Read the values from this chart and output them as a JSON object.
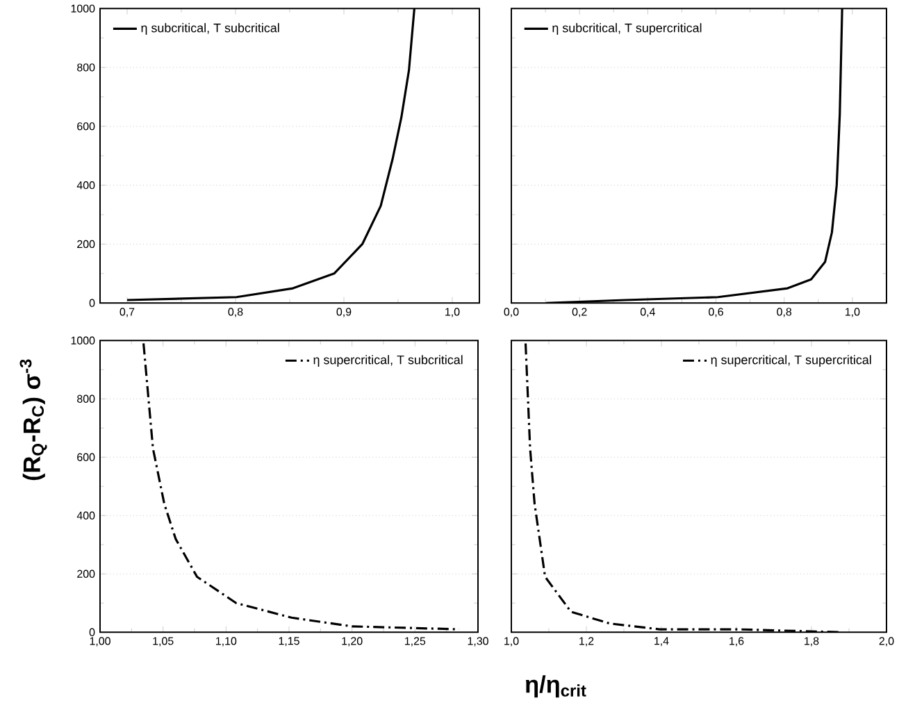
{
  "chart_data": [
    {
      "type": "line",
      "xlim": [
        0.675,
        1.025
      ],
      "ylim": [
        0,
        1000
      ],
      "xticks": [
        {
          "value": 0.7,
          "label": "0,7"
        },
        {
          "value": 0.8,
          "label": "0,8"
        },
        {
          "value": 0.9,
          "label": "0,9"
        },
        {
          "value": 1.0,
          "label": "1,0"
        }
      ],
      "yticks": [
        0,
        200,
        400,
        600,
        800,
        1000
      ],
      "grid": "y",
      "legend": "top left",
      "line_style": "solid",
      "series": [
        {
          "name": "η subcritical, T subcritical",
          "color": "#000000",
          "x": [
            0.7,
            0.801,
            0.853,
            0.891,
            0.917,
            0.934,
            0.945,
            0.953,
            0.96,
            0.965
          ],
          "values": [
            10,
            20,
            50,
            100,
            200,
            330,
            490,
            630,
            790,
            1000
          ]
        }
      ]
    },
    {
      "type": "line",
      "xlim": [
        0.0,
        1.1
      ],
      "ylim": [
        0,
        1000
      ],
      "xticks": [
        {
          "value": 0.0,
          "label": "0,0"
        },
        {
          "value": 0.2,
          "label": "0,2"
        },
        {
          "value": 0.4,
          "label": "0,4"
        },
        {
          "value": 0.6,
          "label": "0,6"
        },
        {
          "value": 0.8,
          "label": "0,8"
        },
        {
          "value": 1.0,
          "label": "1,0"
        }
      ],
      "yticks": [
        0,
        200,
        400,
        600,
        800,
        1000
      ],
      "tick_labels": "x",
      "grid": "y",
      "legend": "top left",
      "line_style": "solid",
      "series": [
        {
          "name": "η subcritical, T supercritical",
          "color": "#000000",
          "x": [
            0.102,
            0.334,
            0.606,
            0.81,
            0.879,
            0.92,
            0.94,
            0.954,
            0.963,
            0.97
          ],
          "values": [
            0,
            10,
            20,
            50,
            80,
            140,
            240,
            400,
            640,
            1000
          ]
        }
      ]
    },
    {
      "type": "line",
      "ylabel": "(R$_{Q}$-R$_{C}$) σ$^{-3}$",
      "xlim": [
        1.0,
        1.3
      ],
      "ylim": [
        0,
        1000
      ],
      "xticks": [
        {
          "value": 1.0,
          "label": "1,00"
        },
        {
          "value": 1.05,
          "label": "1,05"
        },
        {
          "value": 1.1,
          "label": "1,10"
        },
        {
          "value": 1.15,
          "label": "1,15"
        },
        {
          "value": 1.2,
          "label": "1,20"
        },
        {
          "value": 1.25,
          "label": "1,25"
        },
        {
          "value": 1.3,
          "label": "1,30"
        }
      ],
      "yticks": [
        0,
        200,
        400,
        600,
        800,
        1000
      ],
      "grid": "y",
      "legend": "top right",
      "line_style": "dashdot",
      "series": [
        {
          "name": "η supercritical, T subcritical",
          "color": "#000000",
          "x": [
            1.0345,
            1.042,
            1.051,
            1.06,
            1.077,
            1.108,
            1.152,
            1.2,
            1.285
          ],
          "values": [
            990,
            630,
            440,
            320,
            190,
            100,
            50,
            20,
            10
          ]
        }
      ]
    },
    {
      "type": "line",
      "xlabel": "η/η$_{crit}$",
      "xlim": [
        1.0,
        2.0
      ],
      "ylim": [
        0,
        1000
      ],
      "xticks": [
        {
          "value": 1.0,
          "label": "1,0"
        },
        {
          "value": 1.2,
          "label": "1,2"
        },
        {
          "value": 1.4,
          "label": "1,4"
        },
        {
          "value": 1.6,
          "label": "1,6"
        },
        {
          "value": 1.8,
          "label": "1,8"
        },
        {
          "value": 2.0,
          "label": "2,0"
        }
      ],
      "yticks": [
        0,
        200,
        400,
        600,
        800,
        1000
      ],
      "tick_labels": "x",
      "grid": "y",
      "legend": "top right",
      "line_style": "dashdot",
      "series": [
        {
          "name": "η supercritical, T supercritical",
          "color": "#000000",
          "x": [
            1.038,
            1.05,
            1.062,
            1.09,
            1.159,
            1.262,
            1.395,
            1.6,
            1.88
          ],
          "values": [
            990,
            630,
            440,
            190,
            70,
            30,
            10,
            10,
            0
          ]
        }
      ]
    }
  ]
}
